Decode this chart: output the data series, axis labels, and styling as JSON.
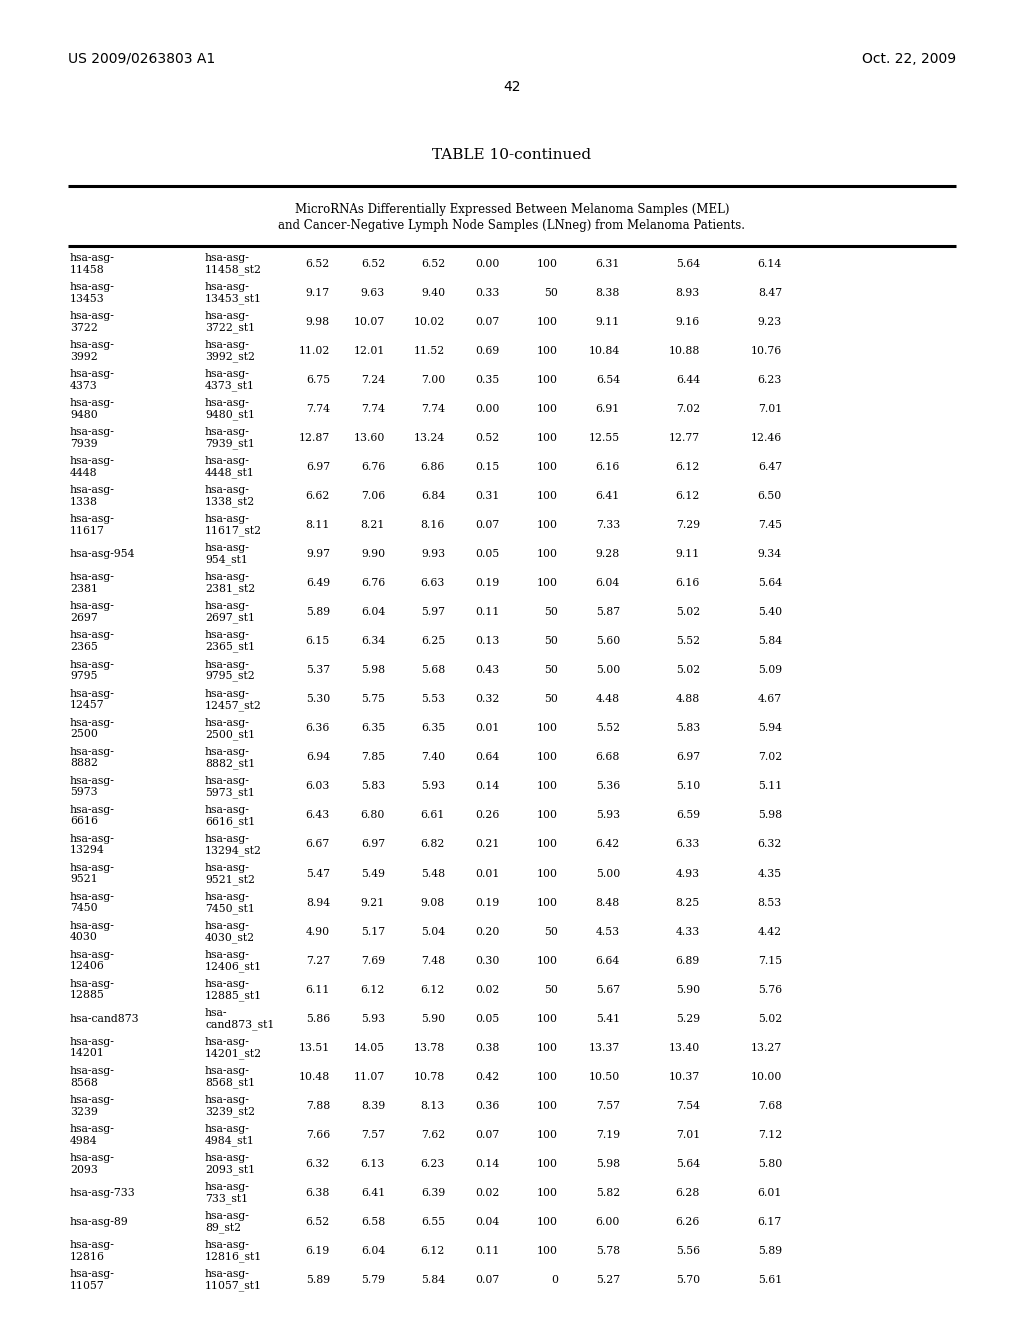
{
  "header_left": "US 2009/0263803 A1",
  "header_right": "Oct. 22, 2009",
  "page_number": "42",
  "table_title": "TABLE 10-continued",
  "subtitle_line1": "MicroRNAs Differentially Expressed Between Melanoma Samples (MEL)",
  "subtitle_line2": "and Cancer-Negative Lymph Node Samples (LNneg) from Melanoma Patients.",
  "rows": [
    [
      "hsa-asg-",
      "11458",
      "hsa-asg-",
      "11458_st2",
      "6.52",
      "6.52",
      "6.52",
      "0.00",
      "100",
      "6.31",
      "5.64",
      "6.14"
    ],
    [
      "hsa-asg-",
      "13453",
      "hsa-asg-",
      "13453_st1",
      "9.17",
      "9.63",
      "9.40",
      "0.33",
      "50",
      "8.38",
      "8.93",
      "8.47"
    ],
    [
      "hsa-asg-",
      "3722",
      "hsa-asg-",
      "3722_st1",
      "9.98",
      "10.07",
      "10.02",
      "0.07",
      "100",
      "9.11",
      "9.16",
      "9.23"
    ],
    [
      "hsa-asg-",
      "3992",
      "hsa-asg-",
      "3992_st2",
      "11.02",
      "12.01",
      "11.52",
      "0.69",
      "100",
      "10.84",
      "10.88",
      "10.76"
    ],
    [
      "hsa-asg-",
      "4373",
      "hsa-asg-",
      "4373_st1",
      "6.75",
      "7.24",
      "7.00",
      "0.35",
      "100",
      "6.54",
      "6.44",
      "6.23"
    ],
    [
      "hsa-asg-",
      "9480",
      "hsa-asg-",
      "9480_st1",
      "7.74",
      "7.74",
      "7.74",
      "0.00",
      "100",
      "6.91",
      "7.02",
      "7.01"
    ],
    [
      "hsa-asg-",
      "7939",
      "hsa-asg-",
      "7939_st1",
      "12.87",
      "13.60",
      "13.24",
      "0.52",
      "100",
      "12.55",
      "12.77",
      "12.46"
    ],
    [
      "hsa-asg-",
      "4448",
      "hsa-asg-",
      "4448_st1",
      "6.97",
      "6.76",
      "6.86",
      "0.15",
      "100",
      "6.16",
      "6.12",
      "6.47"
    ],
    [
      "hsa-asg-",
      "1338",
      "hsa-asg-",
      "1338_st2",
      "6.62",
      "7.06",
      "6.84",
      "0.31",
      "100",
      "6.41",
      "6.12",
      "6.50"
    ],
    [
      "hsa-asg-",
      "11617",
      "hsa-asg-",
      "11617_st2",
      "8.11",
      "8.21",
      "8.16",
      "0.07",
      "100",
      "7.33",
      "7.29",
      "7.45"
    ],
    [
      "hsa-asg-954",
      "",
      "hsa-asg-",
      "954_st1",
      "9.97",
      "9.90",
      "9.93",
      "0.05",
      "100",
      "9.28",
      "9.11",
      "9.34"
    ],
    [
      "hsa-asg-",
      "2381",
      "hsa-asg-",
      "2381_st2",
      "6.49",
      "6.76",
      "6.63",
      "0.19",
      "100",
      "6.04",
      "6.16",
      "5.64"
    ],
    [
      "hsa-asg-",
      "2697",
      "hsa-asg-",
      "2697_st1",
      "5.89",
      "6.04",
      "5.97",
      "0.11",
      "50",
      "5.87",
      "5.02",
      "5.40"
    ],
    [
      "hsa-asg-",
      "2365",
      "hsa-asg-",
      "2365_st1",
      "6.15",
      "6.34",
      "6.25",
      "0.13",
      "50",
      "5.60",
      "5.52",
      "5.84"
    ],
    [
      "hsa-asg-",
      "9795",
      "hsa-asg-",
      "9795_st2",
      "5.37",
      "5.98",
      "5.68",
      "0.43",
      "50",
      "5.00",
      "5.02",
      "5.09"
    ],
    [
      "hsa-asg-",
      "12457",
      "hsa-asg-",
      "12457_st2",
      "5.30",
      "5.75",
      "5.53",
      "0.32",
      "50",
      "4.48",
      "4.88",
      "4.67"
    ],
    [
      "hsa-asg-",
      "2500",
      "hsa-asg-",
      "2500_st1",
      "6.36",
      "6.35",
      "6.35",
      "0.01",
      "100",
      "5.52",
      "5.83",
      "5.94"
    ],
    [
      "hsa-asg-",
      "8882",
      "hsa-asg-",
      "8882_st1",
      "6.94",
      "7.85",
      "7.40",
      "0.64",
      "100",
      "6.68",
      "6.97",
      "7.02"
    ],
    [
      "hsa-asg-",
      "5973",
      "hsa-asg-",
      "5973_st1",
      "6.03",
      "5.83",
      "5.93",
      "0.14",
      "100",
      "5.36",
      "5.10",
      "5.11"
    ],
    [
      "hsa-asg-",
      "6616",
      "hsa-asg-",
      "6616_st1",
      "6.43",
      "6.80",
      "6.61",
      "0.26",
      "100",
      "5.93",
      "6.59",
      "5.98"
    ],
    [
      "hsa-asg-",
      "13294",
      "hsa-asg-",
      "13294_st2",
      "6.67",
      "6.97",
      "6.82",
      "0.21",
      "100",
      "6.42",
      "6.33",
      "6.32"
    ],
    [
      "hsa-asg-",
      "9521",
      "hsa-asg-",
      "9521_st2",
      "5.47",
      "5.49",
      "5.48",
      "0.01",
      "100",
      "5.00",
      "4.93",
      "4.35"
    ],
    [
      "hsa-asg-",
      "7450",
      "hsa-asg-",
      "7450_st1",
      "8.94",
      "9.21",
      "9.08",
      "0.19",
      "100",
      "8.48",
      "8.25",
      "8.53"
    ],
    [
      "hsa-asg-",
      "4030",
      "hsa-asg-",
      "4030_st2",
      "4.90",
      "5.17",
      "5.04",
      "0.20",
      "50",
      "4.53",
      "4.33",
      "4.42"
    ],
    [
      "hsa-asg-",
      "12406",
      "hsa-asg-",
      "12406_st1",
      "7.27",
      "7.69",
      "7.48",
      "0.30",
      "100",
      "6.64",
      "6.89",
      "7.15"
    ],
    [
      "hsa-asg-",
      "12885",
      "hsa-asg-",
      "12885_st1",
      "6.11",
      "6.12",
      "6.12",
      "0.02",
      "50",
      "5.67",
      "5.90",
      "5.76"
    ],
    [
      "hsa-cand873",
      "",
      "hsa-",
      "cand873_st1",
      "5.86",
      "5.93",
      "5.90",
      "0.05",
      "100",
      "5.41",
      "5.29",
      "5.02"
    ],
    [
      "hsa-asg-",
      "14201",
      "hsa-asg-",
      "14201_st2",
      "13.51",
      "14.05",
      "13.78",
      "0.38",
      "100",
      "13.37",
      "13.40",
      "13.27"
    ],
    [
      "hsa-asg-",
      "8568",
      "hsa-asg-",
      "8568_st1",
      "10.48",
      "11.07",
      "10.78",
      "0.42",
      "100",
      "10.50",
      "10.37",
      "10.00"
    ],
    [
      "hsa-asg-",
      "3239",
      "hsa-asg-",
      "3239_st2",
      "7.88",
      "8.39",
      "8.13",
      "0.36",
      "100",
      "7.57",
      "7.54",
      "7.68"
    ],
    [
      "hsa-asg-",
      "4984",
      "hsa-asg-",
      "4984_st1",
      "7.66",
      "7.57",
      "7.62",
      "0.07",
      "100",
      "7.19",
      "7.01",
      "7.12"
    ],
    [
      "hsa-asg-",
      "2093",
      "hsa-asg-",
      "2093_st1",
      "6.32",
      "6.13",
      "6.23",
      "0.14",
      "100",
      "5.98",
      "5.64",
      "5.80"
    ],
    [
      "hsa-asg-733",
      "",
      "hsa-asg-",
      "733_st1",
      "6.38",
      "6.41",
      "6.39",
      "0.02",
      "100",
      "5.82",
      "6.28",
      "6.01"
    ],
    [
      "hsa-asg-89",
      "",
      "hsa-asg-",
      "89_st2",
      "6.52",
      "6.58",
      "6.55",
      "0.04",
      "100",
      "6.00",
      "6.26",
      "6.17"
    ],
    [
      "hsa-asg-",
      "12816",
      "hsa-asg-",
      "12816_st1",
      "6.19",
      "6.04",
      "6.12",
      "0.11",
      "100",
      "5.78",
      "5.56",
      "5.89"
    ],
    [
      "hsa-asg-",
      "11057",
      "hsa-asg-",
      "11057_st1",
      "5.89",
      "5.79",
      "5.84",
      "0.07",
      "0",
      "5.27",
      "5.70",
      "5.61"
    ]
  ],
  "figsize": [
    10.24,
    13.2
  ],
  "dpi": 100
}
